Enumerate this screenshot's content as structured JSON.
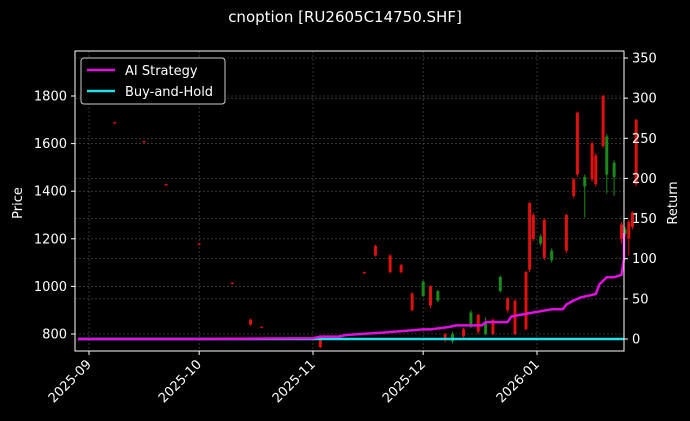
{
  "title": "cnoption [RU2605C14750.SHF]",
  "colors": {
    "background": "#000000",
    "axes": "#ffffff",
    "grid": "#555555",
    "up": "#1a8a1a",
    "down": "#e01010",
    "ai_strategy": "#e010e0",
    "buy_and_hold": "#20e0e8"
  },
  "legend": {
    "items": [
      {
        "label": "AI Strategy",
        "color": "#e010e0"
      },
      {
        "label": "Buy-and-Hold",
        "color": "#20e0e8"
      }
    ]
  },
  "chart_data": {
    "type": "line",
    "title": "cnoption [RU2605C14750.SHF]",
    "xlabel": "",
    "ylabel": "Price",
    "ylabel_right": "Return",
    "x_ticks": [
      "2025-09",
      "2025-10",
      "2025-11",
      "2025-12",
      "2026-01"
    ],
    "y_ticks_left": [
      800,
      1000,
      1200,
      1400,
      1600,
      1800
    ],
    "y_ticks_right": [
      0,
      50,
      100,
      150,
      200,
      250,
      300,
      350
    ],
    "ylim_left": [
      730,
      1990
    ],
    "ylim_right": [
      -15,
      360
    ],
    "grid": true,
    "legend_position": "upper left",
    "candles": [
      {
        "date": "2025-09-08",
        "open": 1690,
        "close": 1685,
        "high": 1692,
        "low": 1683
      },
      {
        "date": "2025-09-16",
        "open": 1610,
        "close": 1605,
        "high": 1612,
        "low": 1603
      },
      {
        "date": "2025-09-22",
        "open": 1430,
        "close": 1425,
        "high": 1432,
        "low": 1422
      },
      {
        "date": "2025-10-01",
        "open": 1180,
        "close": 1175,
        "high": 1182,
        "low": 1172
      },
      {
        "date": "2025-10-10",
        "open": 1015,
        "close": 1010,
        "high": 1018,
        "low": 1008
      },
      {
        "date": "2025-10-15",
        "open": 860,
        "close": 840,
        "high": 865,
        "low": 835
      },
      {
        "date": "2025-10-18",
        "open": 830,
        "close": 826,
        "high": 832,
        "low": 824
      },
      {
        "date": "2025-11-03",
        "open": 790,
        "close": 745,
        "high": 795,
        "low": 740
      },
      {
        "date": "2025-11-15",
        "open": 1060,
        "close": 1055,
        "high": 1062,
        "low": 1052
      },
      {
        "date": "2025-11-18",
        "open": 1170,
        "close": 1130,
        "high": 1175,
        "low": 1125
      },
      {
        "date": "2025-11-22",
        "open": 1130,
        "close": 1060,
        "high": 1135,
        "low": 1055
      },
      {
        "date": "2025-11-25",
        "open": 1090,
        "close": 1060,
        "high": 1095,
        "low": 1055
      },
      {
        "date": "2025-11-28",
        "open": 970,
        "close": 900,
        "high": 975,
        "low": 895
      },
      {
        "date": "2025-12-01",
        "open": 960,
        "close": 1020,
        "high": 1025,
        "low": 955
      },
      {
        "date": "2025-12-03",
        "open": 1000,
        "close": 920,
        "high": 1005,
        "low": 910
      },
      {
        "date": "2025-12-05",
        "open": 940,
        "close": 980,
        "high": 985,
        "low": 935
      },
      {
        "date": "2025-12-07",
        "open": 800,
        "close": 780,
        "high": 805,
        "low": 765
      },
      {
        "date": "2025-12-09",
        "open": 770,
        "close": 800,
        "high": 810,
        "low": 760
      },
      {
        "date": "2025-12-12",
        "open": 820,
        "close": 790,
        "high": 825,
        "low": 785
      },
      {
        "date": "2025-12-14",
        "open": 830,
        "close": 890,
        "high": 900,
        "low": 825
      },
      {
        "date": "2025-12-16",
        "open": 880,
        "close": 810,
        "high": 885,
        "low": 800
      },
      {
        "date": "2025-12-18",
        "open": 800,
        "close": 850,
        "high": 870,
        "low": 795
      },
      {
        "date": "2025-12-20",
        "open": 860,
        "close": 800,
        "high": 865,
        "low": 795
      },
      {
        "date": "2025-12-22",
        "open": 980,
        "close": 1040,
        "high": 1045,
        "low": 975
      },
      {
        "date": "2025-12-24",
        "open": 950,
        "close": 900,
        "high": 955,
        "low": 890
      },
      {
        "date": "2025-12-26",
        "open": 940,
        "close": 800,
        "high": 945,
        "low": 795
      },
      {
        "date": "2025-12-29",
        "open": 1060,
        "close": 820,
        "high": 1065,
        "low": 815
      },
      {
        "date": "2025-12-30",
        "open": 1350,
        "close": 1070,
        "high": 1355,
        "low": 1060
      },
      {
        "date": "2025-12-31",
        "open": 1300,
        "close": 1200,
        "high": 1310,
        "low": 1190
      },
      {
        "date": "2026-01-02",
        "open": 1180,
        "close": 1210,
        "high": 1220,
        "low": 1170
      },
      {
        "date": "2026-01-03",
        "open": 1280,
        "close": 1120,
        "high": 1285,
        "low": 1110
      },
      {
        "date": "2026-01-05",
        "open": 1110,
        "close": 1150,
        "high": 1160,
        "low": 1100
      },
      {
        "date": "2026-01-09",
        "open": 1300,
        "close": 1150,
        "high": 1305,
        "low": 1140
      },
      {
        "date": "2026-01-11",
        "open": 1450,
        "close": 1380,
        "high": 1455,
        "low": 1370
      },
      {
        "date": "2026-01-12",
        "open": 1730,
        "close": 1470,
        "high": 1735,
        "low": 1460
      },
      {
        "date": "2026-01-14",
        "open": 1420,
        "close": 1460,
        "high": 1470,
        "low": 1290
      },
      {
        "date": "2026-01-16",
        "open": 1600,
        "close": 1450,
        "high": 1610,
        "low": 1440
      },
      {
        "date": "2026-01-17",
        "open": 1550,
        "close": 1430,
        "high": 1560,
        "low": 1420
      },
      {
        "date": "2026-01-19",
        "open": 1800,
        "close": 1590,
        "high": 1805,
        "low": 1580
      },
      {
        "date": "2026-01-20",
        "open": 1470,
        "close": 1630,
        "high": 1640,
        "low": 1390
      },
      {
        "date": "2026-01-22",
        "open": 1460,
        "close": 1520,
        "high": 1530,
        "low": 1380
      },
      {
        "date": "2026-01-24",
        "open": 1260,
        "close": 1200,
        "high": 1270,
        "low": 1180
      },
      {
        "date": "2026-01-25",
        "open": 1220,
        "close": 1240,
        "high": 1250,
        "low": 1210
      },
      {
        "date": "2026-01-26",
        "open": 1270,
        "close": 1200,
        "high": 1280,
        "low": 1130
      },
      {
        "date": "2026-01-27",
        "open": 1310,
        "close": 1250,
        "high": 1315,
        "low": 1240
      },
      {
        "date": "2026-01-28",
        "open": 1700,
        "close": 1430,
        "high": 1705,
        "low": 1420
      }
    ],
    "series": [
      {
        "name": "AI Strategy",
        "axis": "right",
        "x": [
          "2025-08-29",
          "2025-10-01",
          "2025-11-01",
          "2025-11-03",
          "2025-11-08",
          "2025-11-10",
          "2025-11-20",
          "2025-12-01",
          "2025-12-03",
          "2025-12-08",
          "2025-12-10",
          "2025-12-17",
          "2025-12-18",
          "2025-12-24",
          "2025-12-25",
          "2025-12-31",
          "2026-01-05",
          "2026-01-08",
          "2026-01-09",
          "2026-01-11",
          "2026-01-13",
          "2026-01-17",
          "2026-01-18",
          "2026-01-20",
          "2026-01-22",
          "2026-01-24",
          "2026-01-27",
          "2026-01-28",
          "2026-01-29"
        ],
        "values": [
          0,
          0,
          1,
          3,
          3,
          5,
          8,
          12,
          12,
          15,
          17,
          17,
          21,
          21,
          28,
          33,
          37,
          37,
          43,
          48,
          52,
          56,
          68,
          77,
          77,
          80,
          100,
          100,
          132
        ]
      },
      {
        "name": "Buy-and-Hold",
        "axis": "right",
        "x": [
          "2025-08-29",
          "2026-01-29"
        ],
        "values": [
          0,
          0
        ]
      }
    ]
  }
}
